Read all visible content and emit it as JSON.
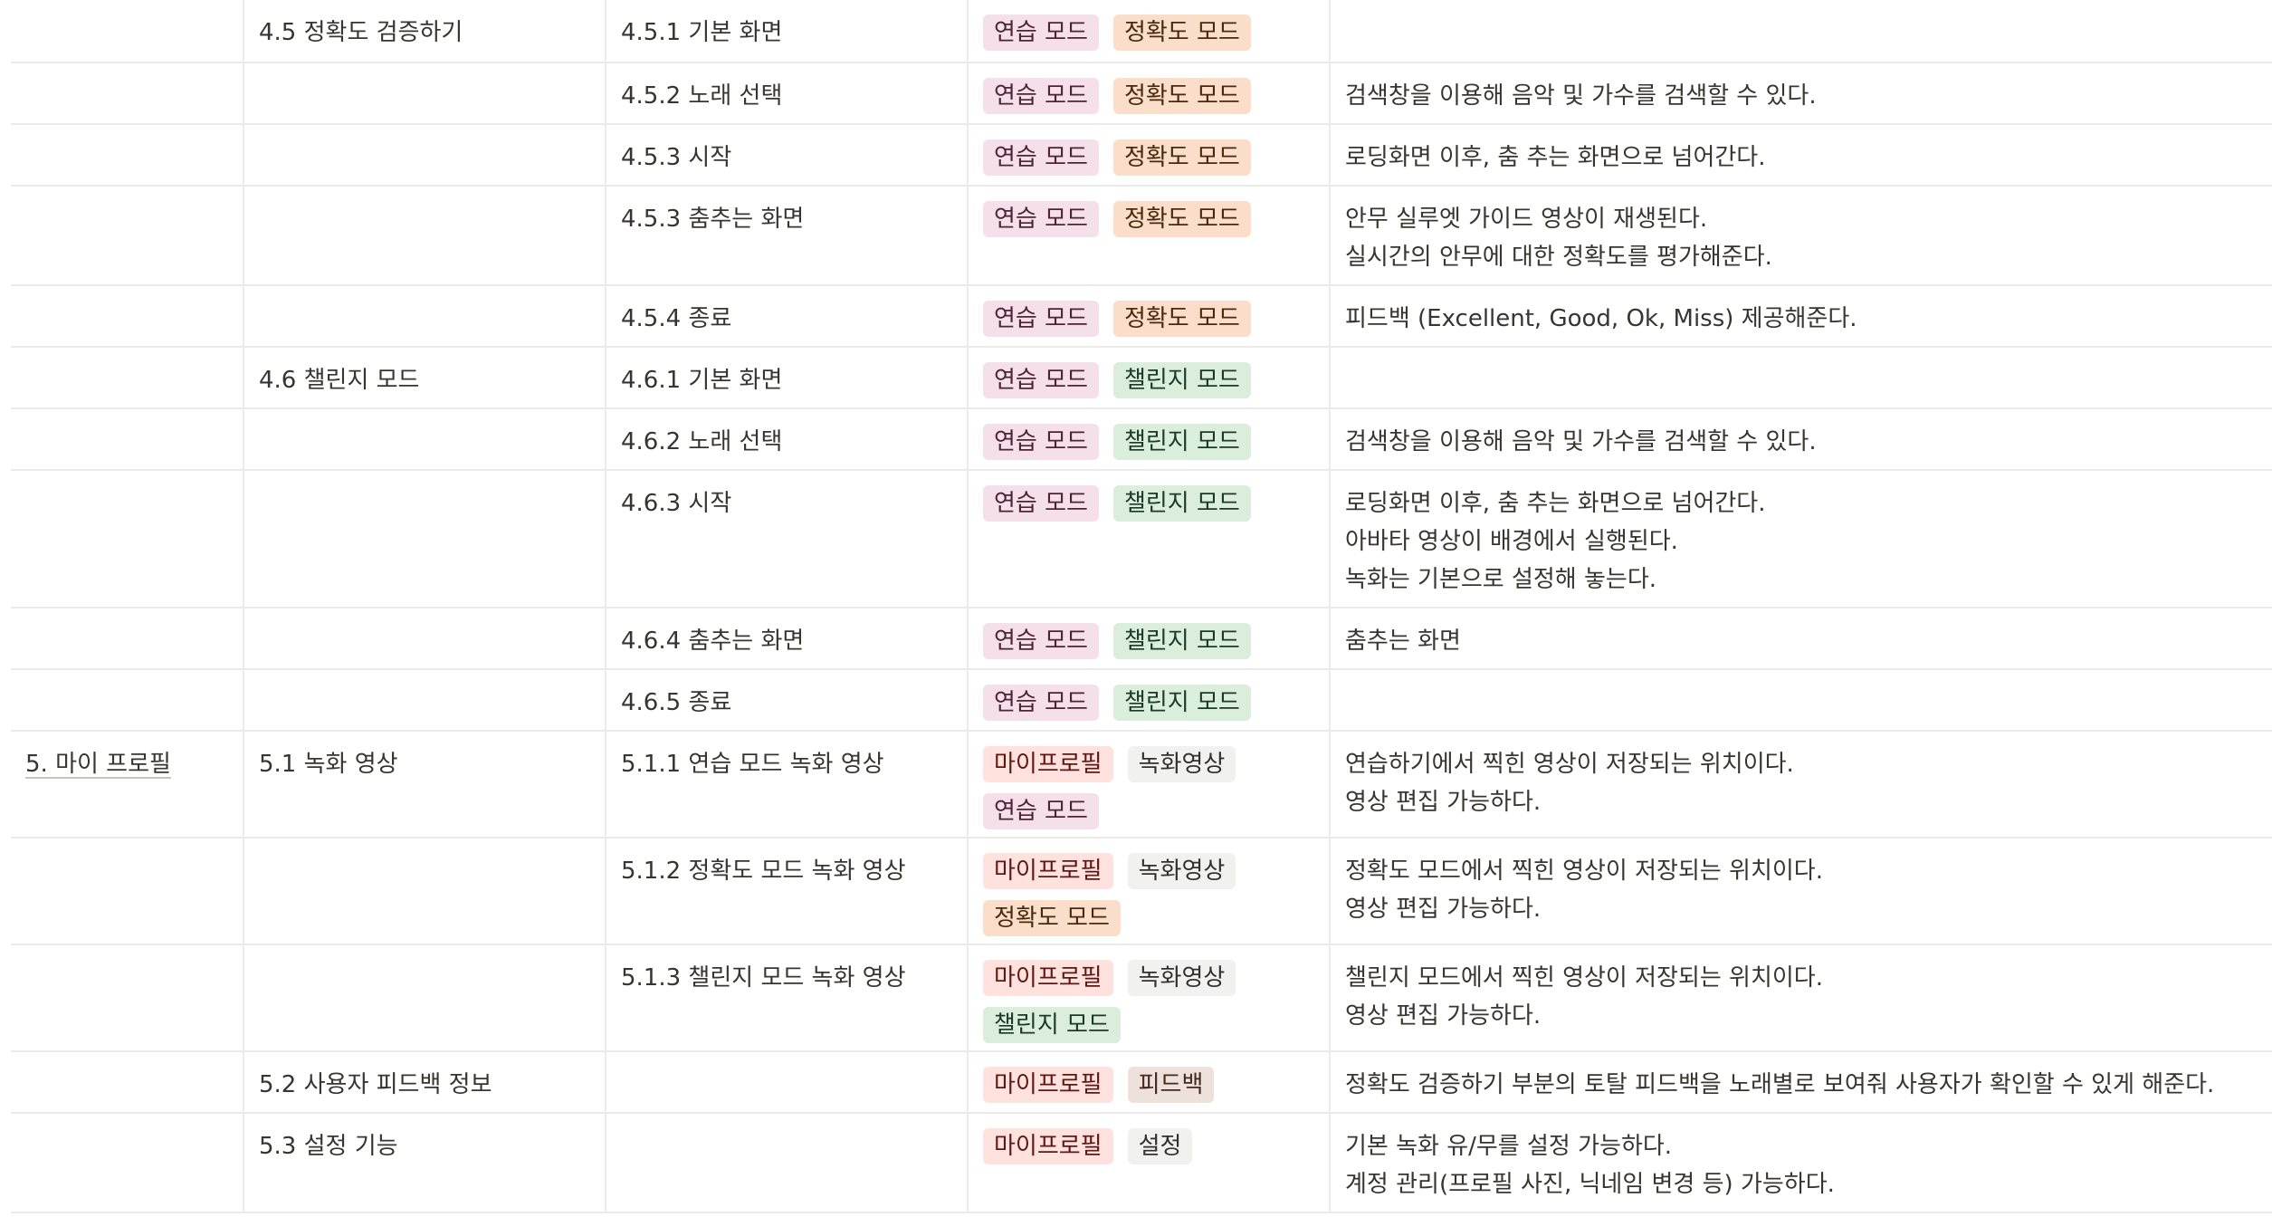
{
  "colors": {
    "border": "#ebebea",
    "text": "#37352f",
    "tag_pink": "#f5e0e9",
    "tag_orange": "#fadec9",
    "tag_green": "#dbeddb",
    "tag_red": "#ffe2dd",
    "tag_gray": "#f1f1ef",
    "tag_brown": "#eee0da"
  },
  "rows": [
    {
      "c1": "",
      "c2": "4.5 정확도 검증하기",
      "c3": "4.5.1 기본 화면",
      "tags": [
        {
          "label": "연습 모드",
          "color": "pink"
        },
        {
          "label": "정확도 모드",
          "color": "orange"
        }
      ],
      "desc": []
    },
    {
      "c1": "",
      "c2": "",
      "c3": "4.5.2 노래 선택",
      "tags": [
        {
          "label": "연습 모드",
          "color": "pink"
        },
        {
          "label": "정확도 모드",
          "color": "orange"
        }
      ],
      "desc": [
        "검색창을 이용해 음악 및 가수를 검색할 수 있다."
      ]
    },
    {
      "c1": "",
      "c2": "",
      "c3": "4.5.3 시작",
      "tags": [
        {
          "label": "연습 모드",
          "color": "pink"
        },
        {
          "label": "정확도 모드",
          "color": "orange"
        }
      ],
      "desc": [
        "로딩화면 이후, 춤 추는 화면으로 넘어간다."
      ]
    },
    {
      "c1": "",
      "c2": "",
      "c3": "4.5.3 춤추는 화면",
      "tags": [
        {
          "label": "연습 모드",
          "color": "pink"
        },
        {
          "label": "정확도 모드",
          "color": "orange"
        }
      ],
      "desc": [
        "안무 실루엣 가이드 영상이 재생된다.",
        "실시간의 안무에 대한 정확도를 평가해준다."
      ]
    },
    {
      "c1": "",
      "c2": "",
      "c3": "4.5.4 종료",
      "tags": [
        {
          "label": "연습 모드",
          "color": "pink"
        },
        {
          "label": "정확도 모드",
          "color": "orange"
        }
      ],
      "desc": [
        "피드백 (Excellent, Good, Ok, Miss) 제공해준다."
      ]
    },
    {
      "c1": "",
      "c2": "4.6 챌린지 모드",
      "c3": "4.6.1 기본 화면",
      "tags": [
        {
          "label": "연습 모드",
          "color": "pink"
        },
        {
          "label": "챌린지 모드",
          "color": "green"
        }
      ],
      "desc": []
    },
    {
      "c1": "",
      "c2": "",
      "c3": "4.6.2 노래 선택",
      "tags": [
        {
          "label": "연습 모드",
          "color": "pink"
        },
        {
          "label": "챌린지 모드",
          "color": "green"
        }
      ],
      "desc": [
        "검색창을 이용해 음악 및 가수를 검색할 수 있다."
      ]
    },
    {
      "c1": "",
      "c2": "",
      "c3": "4.6.3 시작",
      "tags": [
        {
          "label": "연습 모드",
          "color": "pink"
        },
        {
          "label": "챌린지 모드",
          "color": "green"
        }
      ],
      "desc": [
        "로딩화면 이후, 춤 추는 화면으로 넘어간다.",
        "아바타 영상이 배경에서 실행된다.",
        "녹화는 기본으로 설정해 놓는다."
      ]
    },
    {
      "c1": "",
      "c2": "",
      "c3": "4.6.4 춤추는 화면",
      "tags": [
        {
          "label": "연습 모드",
          "color": "pink"
        },
        {
          "label": "챌린지 모드",
          "color": "green"
        }
      ],
      "desc": [
        "춤추는 화면"
      ]
    },
    {
      "c1": "",
      "c2": "",
      "c3": "4.6.5 종료",
      "tags": [
        {
          "label": "연습 모드",
          "color": "pink"
        },
        {
          "label": "챌린지 모드",
          "color": "green"
        }
      ],
      "desc": []
    },
    {
      "c1": "5. 마이 프로필",
      "c2": "5.1 녹화 영상",
      "c3": "5.1.1 연습 모드 녹화 영상",
      "tags": [
        {
          "label": "마이프로필",
          "color": "red"
        },
        {
          "label": "녹화영상",
          "color": "gray"
        },
        {
          "label": "연습 모드",
          "color": "pink"
        }
      ],
      "desc": [
        "연습하기에서 찍힌 영상이 저장되는 위치이다.",
        "영상 편집 가능하다."
      ]
    },
    {
      "c1": "",
      "c2": "",
      "c3": "5.1.2 정확도 모드 녹화 영상",
      "tags": [
        {
          "label": "마이프로필",
          "color": "red"
        },
        {
          "label": "녹화영상",
          "color": "gray"
        },
        {
          "label": "정확도 모드",
          "color": "orange"
        }
      ],
      "desc": [
        "정확도 모드에서 찍힌 영상이 저장되는 위치이다.",
        "영상 편집 가능하다."
      ]
    },
    {
      "c1": "",
      "c2": "",
      "c3": "5.1.3 챌린지 모드 녹화 영상",
      "tags": [
        {
          "label": "마이프로필",
          "color": "red"
        },
        {
          "label": "녹화영상",
          "color": "gray"
        },
        {
          "label": "챌린지 모드",
          "color": "green"
        }
      ],
      "desc": [
        "챌린지 모드에서 찍힌 영상이 저장되는 위치이다.",
        "영상 편집 가능하다."
      ]
    },
    {
      "c1": "",
      "c2": "5.2 사용자 피드백 정보",
      "c3": "",
      "tags": [
        {
          "label": "마이프로필",
          "color": "red"
        },
        {
          "label": "피드백",
          "color": "brown"
        }
      ],
      "desc": [
        "정확도 검증하기 부분의 토탈 피드백을 노래별로 보여줘 사용자가 확인할 수 있게 해준다."
      ]
    },
    {
      "c1": "",
      "c2": "5.3 설정 기능",
      "c3": "",
      "tags": [
        {
          "label": "마이프로필",
          "color": "red"
        },
        {
          "label": "설정",
          "color": "gray"
        }
      ],
      "desc": [
        "기본 녹화 유/무를 설정 가능하다.",
        "계정 관리(프로필 사진, 닉네임 변경 등) 가능하다."
      ]
    }
  ]
}
